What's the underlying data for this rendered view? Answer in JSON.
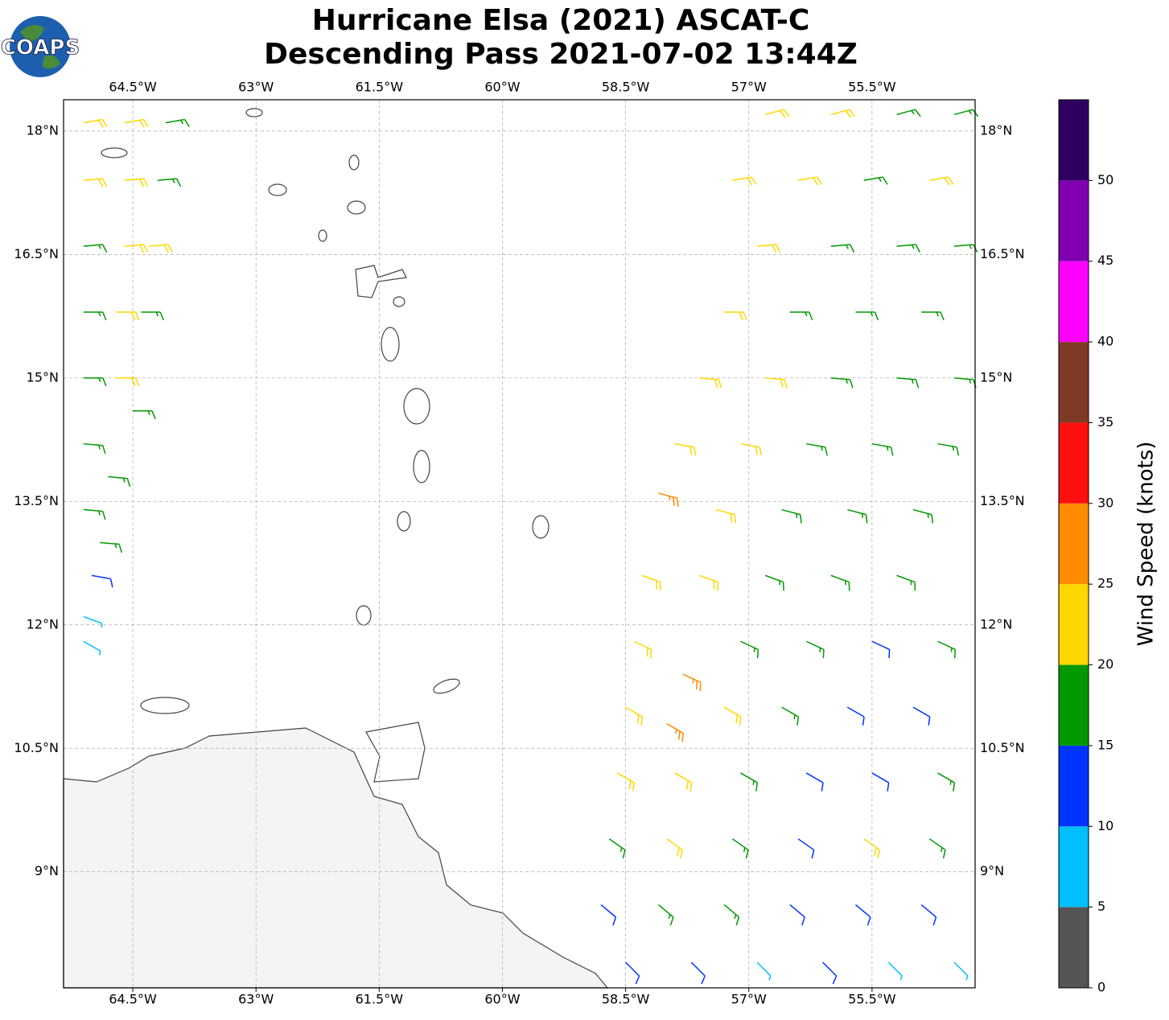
{
  "logo": "COAPS",
  "chart_data": {
    "type": "barbs",
    "title": "Hurricane Elsa (2021) ASCAT-C",
    "subtitle": "Descending Pass 2021-07-02 13:44Z",
    "xlim": [
      -65.343,
      -54.245
    ],
    "ylim": [
      7.59,
      18.38
    ],
    "grid": true,
    "xticks": [
      {
        "value": -64.5,
        "label": "64.5°W"
      },
      {
        "value": -63,
        "label": "63°W"
      },
      {
        "value": -61.5,
        "label": "61.5°W"
      },
      {
        "value": -60,
        "label": "60°W"
      },
      {
        "value": -58.5,
        "label": "58.5°W"
      },
      {
        "value": -57,
        "label": "57°W"
      },
      {
        "value": -55.5,
        "label": "55.5°W"
      }
    ],
    "yticks": [
      {
        "value": 18,
        "label": "18°N"
      },
      {
        "value": 16.5,
        "label": "16.5°N"
      },
      {
        "value": 15,
        "label": "15°N"
      },
      {
        "value": 13.5,
        "label": "13.5°N"
      },
      {
        "value": 12,
        "label": "12°N"
      },
      {
        "value": 10.5,
        "label": "10.5°N"
      },
      {
        "value": 9,
        "label": "9°N"
      }
    ],
    "colorbar": {
      "label": "Wind Speed (knots)",
      "bounds": [
        0,
        5,
        10,
        15,
        20,
        25,
        30,
        35,
        40,
        45,
        50,
        55
      ],
      "colors": [
        "#555555",
        "#00bfff",
        "#0033ff",
        "#009900",
        "#ffd700",
        "#ff8c00",
        "#ff1010",
        "#7f3a26",
        "#ff00ff",
        "#8000b0",
        "#2e0060"
      ],
      "ticks": [
        0,
        5,
        10,
        15,
        20,
        25,
        30,
        35,
        40,
        45,
        50
      ]
    },
    "lon": [
      -65.1,
      -64.6,
      -64.1,
      -65.1,
      -64.6,
      -64.2,
      -65.1,
      -64.6,
      -64.3,
      -65.1,
      -64.7,
      -64.4,
      -65.1,
      -64.7,
      -64.5,
      -65.1,
      -64.8,
      -65.1,
      -64.9,
      -65.0,
      -65.1,
      -65.1,
      -56.8,
      -56.0,
      -55.2,
      -54.5,
      -57.2,
      -56.4,
      -55.6,
      -54.8,
      -56.9,
      -56.0,
      -55.2,
      -54.5,
      -57.3,
      -56.5,
      -55.7,
      -54.9,
      -57.6,
      -56.8,
      -56.0,
      -55.2,
      -54.5,
      -57.9,
      -57.1,
      -56.3,
      -55.5,
      -54.7,
      -58.1,
      -57.4,
      -56.6,
      -55.8,
      -55.0,
      -58.3,
      -57.6,
      -56.8,
      -56.0,
      -55.2,
      -58.4,
      -57.8,
      -57.1,
      -56.3,
      -55.5,
      -54.7,
      -58.5,
      -58.0,
      -57.3,
      -56.6,
      -55.8,
      -55.0,
      -58.6,
      -57.9,
      -57.1,
      -56.3,
      -55.5,
      -54.7,
      -58.7,
      -58.0,
      -57.2,
      -56.4,
      -55.6,
      -54.8,
      -58.8,
      -58.1,
      -57.3,
      -56.5,
      -55.7,
      -54.9,
      -58.5,
      -57.7,
      -56.9,
      -56.1,
      -55.3,
      -54.5
    ],
    "lat": [
      18.1,
      18.1,
      18.1,
      17.4,
      17.4,
      17.4,
      16.6,
      16.6,
      16.6,
      15.8,
      15.8,
      15.8,
      15.0,
      15.0,
      14.6,
      14.2,
      13.8,
      13.4,
      13.0,
      12.6,
      12.1,
      11.8,
      18.2,
      18.2,
      18.2,
      18.2,
      17.4,
      17.4,
      17.4,
      17.4,
      16.6,
      16.6,
      16.6,
      16.6,
      15.8,
      15.8,
      15.8,
      15.8,
      15.0,
      15.0,
      15.0,
      15.0,
      15.0,
      14.2,
      14.2,
      14.2,
      14.2,
      14.2,
      13.6,
      13.4,
      13.4,
      13.4,
      13.4,
      12.6,
      12.6,
      12.6,
      12.6,
      12.6,
      11.8,
      11.4,
      11.8,
      11.8,
      11.8,
      11.8,
      11.0,
      10.8,
      11.0,
      11.0,
      11.0,
      11.0,
      10.2,
      10.2,
      10.2,
      10.2,
      10.2,
      10.2,
      9.4,
      9.4,
      9.4,
      9.4,
      9.4,
      9.4,
      8.6,
      8.6,
      8.6,
      8.6,
      8.6,
      8.6,
      7.9,
      7.9,
      7.9,
      7.9,
      7.9,
      7.9
    ],
    "speed": [
      22,
      21,
      18,
      23,
      22,
      19,
      17,
      21,
      22,
      17,
      22,
      18,
      17,
      21,
      17,
      17,
      16,
      17,
      17,
      12,
      8,
      7,
      21,
      20,
      17,
      17,
      22,
      21,
      17,
      22,
      21,
      17,
      17,
      18,
      22,
      17,
      17,
      17,
      22,
      21,
      17,
      17,
      17,
      23,
      22,
      17,
      17,
      17,
      26,
      22,
      17,
      17,
      17,
      22,
      22,
      17,
      17,
      17,
      22,
      27,
      18,
      17,
      13,
      16,
      21,
      28,
      22,
      17,
      13,
      13,
      22,
      22,
      18,
      14,
      13,
      17,
      17,
      21,
      17,
      13,
      21,
      17,
      12,
      17,
      17,
      12,
      12,
      13,
      12,
      12,
      8,
      12,
      8,
      7
    ],
    "direction": [
      80,
      80,
      80,
      85,
      85,
      85,
      85,
      85,
      85,
      90,
      90,
      90,
      90,
      90,
      90,
      95,
      95,
      95,
      95,
      100,
      110,
      120,
      75,
      75,
      75,
      75,
      80,
      80,
      80,
      80,
      85,
      85,
      85,
      85,
      90,
      90,
      90,
      90,
      95,
      95,
      95,
      95,
      95,
      100,
      100,
      100,
      100,
      100,
      105,
      105,
      105,
      105,
      105,
      110,
      110,
      110,
      110,
      110,
      115,
      115,
      115,
      115,
      115,
      115,
      120,
      120,
      120,
      120,
      120,
      120,
      120,
      120,
      120,
      120,
      120,
      120,
      125,
      125,
      125,
      125,
      125,
      125,
      130,
      130,
      130,
      130,
      130,
      130,
      135,
      135,
      135,
      135,
      135,
      135
    ]
  }
}
